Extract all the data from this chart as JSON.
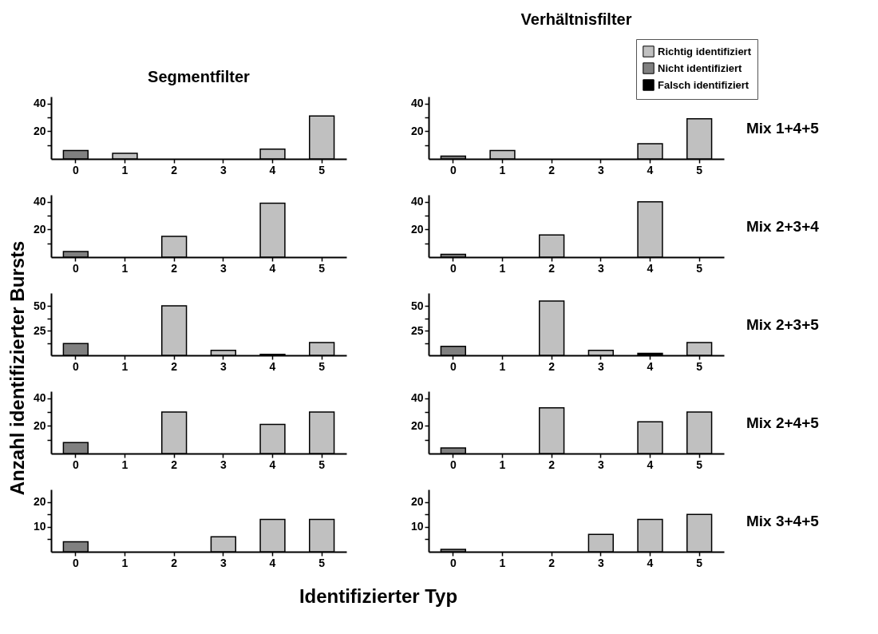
{
  "chart_data": [
    {
      "type": "bar",
      "title": "Segmentfilter",
      "categories": [
        "0",
        "1",
        "2",
        "3",
        "4",
        "5"
      ],
      "stacked": true,
      "ylim": [
        0,
        45
      ],
      "yticks": [
        {
          "value": 10,
          "label": null
        },
        20,
        {
          "value": 30,
          "label": null
        },
        40
      ],
      "series": [
        {
          "color": "#c0c0c0",
          "values": [
            null,
            4,
            null,
            null,
            7,
            31
          ]
        },
        {
          "color": "#808080",
          "values": [
            6,
            null,
            null,
            null,
            null,
            null
          ]
        },
        {
          "color": "#000000",
          "values": [
            null,
            null,
            null,
            null,
            null,
            null
          ]
        }
      ]
    },
    {
      "type": "bar",
      "title": "Verhältnisfilter",
      "categories": [
        "0",
        "1",
        "2",
        "3",
        "4",
        "5"
      ],
      "stacked": true,
      "ylim": [
        0,
        45
      ],
      "yticks": [
        {
          "value": 10,
          "label": null
        },
        20,
        {
          "value": 30,
          "label": null
        },
        40
      ],
      "legend": "top right",
      "annotations": [
        "Mix 1+4+5"
      ],
      "series": [
        {
          "name": "Richtig identifiziert",
          "color": "#c0c0c0",
          "values": [
            null,
            6,
            null,
            null,
            11,
            29
          ]
        },
        {
          "name": "Nicht identifiziert",
          "color": "#808080",
          "values": [
            2,
            null,
            null,
            null,
            null,
            null
          ]
        },
        {
          "name": "Falsch identifiziert",
          "color": "#000000",
          "values": [
            null,
            null,
            null,
            null,
            null,
            null
          ]
        }
      ]
    },
    {
      "type": "bar",
      "categories": [
        "0",
        "1",
        "2",
        "3",
        "4",
        "5"
      ],
      "stacked": true,
      "ylim": [
        0,
        45
      ],
      "yticks": [
        {
          "value": 10,
          "label": null
        },
        20,
        {
          "value": 30,
          "label": null
        },
        40
      ],
      "series": [
        {
          "color": "#c0c0c0",
          "values": [
            null,
            null,
            15,
            null,
            39,
            null
          ]
        },
        {
          "color": "#808080",
          "values": [
            4,
            null,
            null,
            null,
            null,
            null
          ]
        },
        {
          "color": "#000000",
          "values": [
            null,
            null,
            null,
            null,
            null,
            null
          ]
        }
      ]
    },
    {
      "type": "bar",
      "categories": [
        "0",
        "1",
        "2",
        "3",
        "4",
        "5"
      ],
      "stacked": true,
      "ylim": [
        0,
        45
      ],
      "yticks": [
        {
          "value": 10,
          "label": null
        },
        20,
        {
          "value": 30,
          "label": null
        },
        40
      ],
      "annotations": [
        "Mix 2+3+4"
      ],
      "series": [
        {
          "color": "#c0c0c0",
          "values": [
            null,
            null,
            16,
            null,
            40,
            null
          ]
        },
        {
          "color": "#808080",
          "values": [
            2,
            null,
            null,
            null,
            null,
            null
          ]
        },
        {
          "color": "#000000",
          "values": [
            null,
            null,
            null,
            null,
            null,
            null
          ]
        }
      ]
    },
    {
      "type": "bar",
      "categories": [
        "0",
        "1",
        "2",
        "3",
        "4",
        "5"
      ],
      "stacked": true,
      "ylim": [
        0,
        63
      ],
      "yticks": [
        {
          "value": 12.5,
          "label": null
        },
        25,
        {
          "value": 37.5,
          "label": null
        },
        50
      ],
      "ylabel": "Anzahl identifizierter Bursts",
      "series": [
        {
          "color": "#c0c0c0",
          "values": [
            null,
            null,
            50,
            5,
            null,
            13
          ]
        },
        {
          "color": "#808080",
          "values": [
            12,
            null,
            null,
            null,
            null,
            null
          ]
        },
        {
          "color": "#000000",
          "values": [
            null,
            null,
            null,
            null,
            1,
            null
          ]
        }
      ]
    },
    {
      "type": "bar",
      "categories": [
        "0",
        "1",
        "2",
        "3",
        "4",
        "5"
      ],
      "stacked": true,
      "ylim": [
        0,
        63
      ],
      "yticks": [
        {
          "value": 12.5,
          "label": null
        },
        25,
        {
          "value": 37.5,
          "label": null
        },
        50
      ],
      "annotations": [
        "Mix 2+3+5"
      ],
      "series": [
        {
          "color": "#c0c0c0",
          "values": [
            null,
            null,
            55,
            5,
            null,
            13
          ]
        },
        {
          "color": "#808080",
          "values": [
            9,
            null,
            null,
            null,
            null,
            null
          ]
        },
        {
          "color": "#000000",
          "values": [
            null,
            null,
            null,
            null,
            2,
            null
          ]
        }
      ]
    },
    {
      "type": "bar",
      "categories": [
        "0",
        "1",
        "2",
        "3",
        "4",
        "5"
      ],
      "stacked": true,
      "ylim": [
        0,
        45
      ],
      "yticks": [
        {
          "value": 10,
          "label": null
        },
        20,
        {
          "value": 30,
          "label": null
        },
        40
      ],
      "series": [
        {
          "color": "#c0c0c0",
          "values": [
            null,
            null,
            30,
            null,
            21,
            30
          ]
        },
        {
          "color": "#808080",
          "values": [
            8,
            null,
            null,
            null,
            null,
            null
          ]
        },
        {
          "color": "#000000",
          "values": [
            null,
            null,
            null,
            null,
            null,
            null
          ]
        }
      ]
    },
    {
      "type": "bar",
      "categories": [
        "0",
        "1",
        "2",
        "3",
        "4",
        "5"
      ],
      "stacked": true,
      "ylim": [
        0,
        45
      ],
      "yticks": [
        {
          "value": 10,
          "label": null
        },
        20,
        {
          "value": 30,
          "label": null
        },
        40
      ],
      "annotations": [
        "Mix 2+4+5"
      ],
      "series": [
        {
          "color": "#c0c0c0",
          "values": [
            null,
            null,
            33,
            null,
            23,
            30
          ]
        },
        {
          "color": "#808080",
          "values": [
            4,
            null,
            null,
            null,
            null,
            null
          ]
        },
        {
          "color": "#000000",
          "values": [
            null,
            null,
            null,
            null,
            null,
            null
          ]
        }
      ]
    },
    {
      "type": "bar",
      "categories": [
        "0",
        "1",
        "2",
        "3",
        "4",
        "5"
      ],
      "stacked": true,
      "ylim": [
        0,
        25
      ],
      "yticks": [
        {
          "value": 5,
          "label": null
        },
        10,
        {
          "value": 15,
          "label": null
        },
        20
      ],
      "xlabel": "Identifizierter Typ",
      "series": [
        {
          "color": "#c0c0c0",
          "values": [
            null,
            null,
            null,
            6,
            13,
            13
          ]
        },
        {
          "color": "#808080",
          "values": [
            4,
            null,
            null,
            null,
            null,
            null
          ]
        },
        {
          "color": "#000000",
          "values": [
            null,
            null,
            null,
            null,
            null,
            null
          ]
        }
      ]
    },
    {
      "type": "bar",
      "categories": [
        "0",
        "1",
        "2",
        "3",
        "4",
        "5"
      ],
      "stacked": true,
      "ylim": [
        0,
        25
      ],
      "yticks": [
        {
          "value": 5,
          "label": null
        },
        10,
        {
          "value": 15,
          "label": null
        },
        20
      ],
      "annotations": [
        "Mix 3+4+5"
      ],
      "series": [
        {
          "color": "#c0c0c0",
          "values": [
            null,
            null,
            null,
            7,
            13,
            15
          ]
        },
        {
          "color": "#808080",
          "values": [
            1,
            null,
            null,
            null,
            null,
            null
          ]
        },
        {
          "color": "#000000",
          "values": [
            null,
            null,
            null,
            null,
            null,
            null
          ]
        }
      ]
    }
  ]
}
